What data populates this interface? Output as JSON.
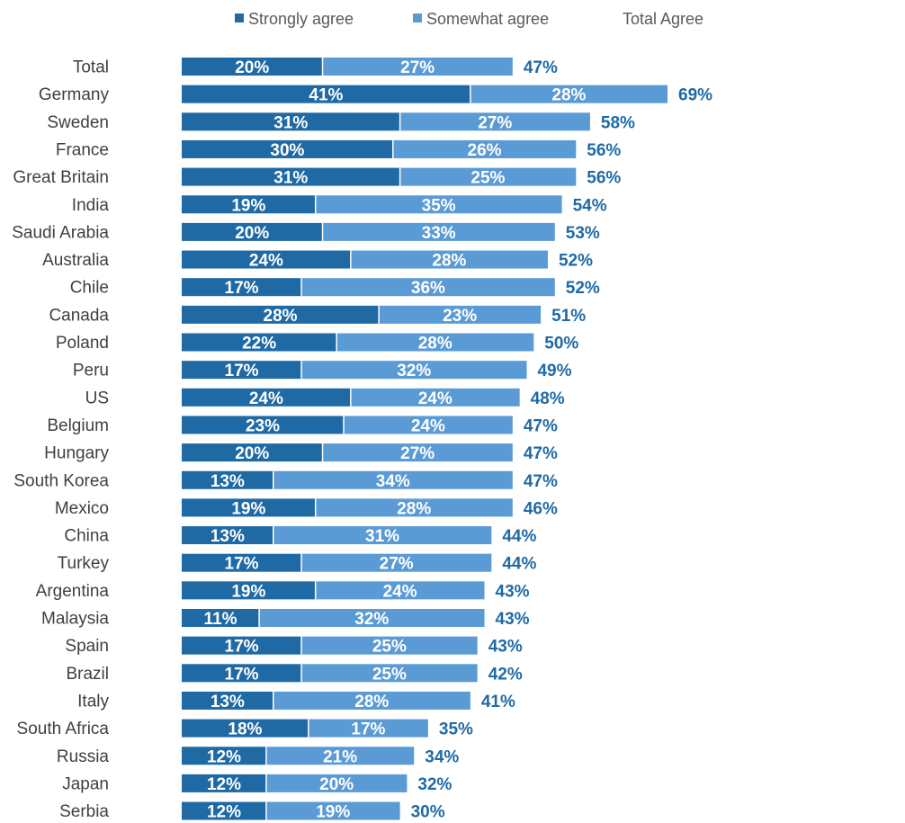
{
  "chart_data": {
    "type": "bar",
    "orientation": "horizontal",
    "stacked": true,
    "title": "",
    "xlabel": "",
    "ylabel": "",
    "legend": [
      "Strongly agree",
      "Somewhat agree",
      "Total Agree"
    ],
    "legend_position": "top",
    "categories": [
      "Total",
      "Germany",
      "Sweden",
      "France",
      "Great Britain",
      "India",
      "Saudi Arabia",
      "Australia",
      "Chile",
      "Canada",
      "Poland",
      "Peru",
      "US",
      "Belgium",
      "Hungary",
      "South Korea",
      "Mexico",
      "China",
      "Turkey",
      "Argentina",
      "Malaysia",
      "Spain",
      "Brazil",
      "Italy",
      "South Africa",
      "Russia",
      "Japan",
      "Serbia"
    ],
    "series": [
      {
        "name": "Strongly agree",
        "color": "#1f6aa5",
        "values": [
          20,
          41,
          31,
          30,
          31,
          19,
          20,
          24,
          17,
          28,
          22,
          17,
          24,
          23,
          20,
          13,
          19,
          13,
          17,
          19,
          11,
          17,
          17,
          13,
          18,
          12,
          12,
          12
        ]
      },
      {
        "name": "Somewhat agree",
        "color": "#5b9bd5",
        "values": [
          27,
          28,
          27,
          26,
          25,
          35,
          33,
          28,
          36,
          23,
          28,
          32,
          24,
          24,
          27,
          34,
          28,
          31,
          27,
          24,
          32,
          25,
          25,
          28,
          17,
          21,
          20,
          19
        ]
      }
    ],
    "totals": {
      "name": "Total Agree",
      "color": "#1f6aa5",
      "values": [
        47,
        69,
        58,
        56,
        56,
        54,
        53,
        52,
        52,
        51,
        50,
        49,
        48,
        47,
        47,
        47,
        46,
        44,
        44,
        43,
        43,
        43,
        42,
        41,
        35,
        34,
        32,
        30
      ]
    },
    "value_suffix": "%",
    "xlim": [
      0,
      69
    ],
    "grid": false
  }
}
